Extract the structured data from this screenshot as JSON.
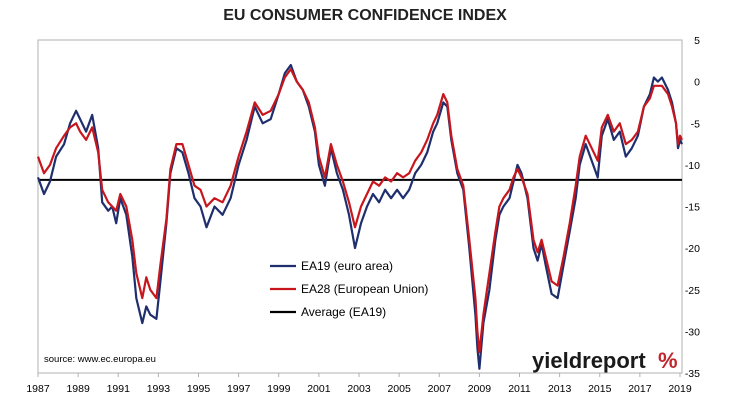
{
  "chart_data": {
    "type": "line",
    "title": "EU CONSUMER CONFIDENCE INDEX",
    "xlabel": "",
    "ylabel": "",
    "xlim": [
      1987,
      2019.1
    ],
    "ylim": [
      -35,
      5
    ],
    "x_ticks": [
      1987,
      1989,
      1991,
      1993,
      1995,
      1997,
      1999,
      2001,
      2003,
      2005,
      2007,
      2009,
      2011,
      2013,
      2015,
      2017,
      2019
    ],
    "y_ticks": [
      5,
      0,
      -5,
      -10,
      -15,
      -20,
      -25,
      -30,
      -35
    ],
    "y_axis_side": "right",
    "grid": false,
    "legend": {
      "placement": "lower-center"
    },
    "source": "source: www.ec.europa.eu",
    "brand": {
      "main": "yieldreport",
      "mark": "%"
    },
    "colors": {
      "ea19": "#1f2f6e",
      "ea28": "#c8161d",
      "average": "#000000",
      "frame": "#b0b0b0"
    },
    "series": [
      {
        "name": "EA19 (euro area)",
        "color": "#1f2f6e",
        "points": [
          [
            1987.0,
            -11.5
          ],
          [
            1987.3,
            -13.5
          ],
          [
            1987.6,
            -12
          ],
          [
            1987.9,
            -9
          ],
          [
            1988.3,
            -7.5
          ],
          [
            1988.6,
            -5
          ],
          [
            1988.9,
            -3.5
          ],
          [
            1989.1,
            -4.5
          ],
          [
            1989.4,
            -6
          ],
          [
            1989.7,
            -4
          ],
          [
            1990.0,
            -8
          ],
          [
            1990.2,
            -14.5
          ],
          [
            1990.5,
            -15.5
          ],
          [
            1990.7,
            -15
          ],
          [
            1990.9,
            -17
          ],
          [
            1991.1,
            -14
          ],
          [
            1991.4,
            -16
          ],
          [
            1991.7,
            -21
          ],
          [
            1991.9,
            -26
          ],
          [
            1992.2,
            -29
          ],
          [
            1992.4,
            -27
          ],
          [
            1992.6,
            -28
          ],
          [
            1992.9,
            -28.5
          ],
          [
            1993.1,
            -24
          ],
          [
            1993.4,
            -17
          ],
          [
            1993.6,
            -11
          ],
          [
            1993.9,
            -8
          ],
          [
            1994.2,
            -8.5
          ],
          [
            1994.5,
            -11
          ],
          [
            1994.8,
            -14
          ],
          [
            1995.1,
            -15
          ],
          [
            1995.4,
            -17.5
          ],
          [
            1995.8,
            -15
          ],
          [
            1996.2,
            -16
          ],
          [
            1996.6,
            -14
          ],
          [
            1997.0,
            -10
          ],
          [
            1997.4,
            -7
          ],
          [
            1997.8,
            -3
          ],
          [
            1998.2,
            -5
          ],
          [
            1998.6,
            -4.5
          ],
          [
            1999.0,
            -1.5
          ],
          [
            1999.3,
            1
          ],
          [
            1999.6,
            2
          ],
          [
            1999.9,
            0
          ],
          [
            2000.2,
            -1
          ],
          [
            2000.5,
            -3
          ],
          [
            2000.8,
            -6
          ],
          [
            2001.0,
            -10
          ],
          [
            2001.3,
            -12.5
          ],
          [
            2001.6,
            -8
          ],
          [
            2001.9,
            -11
          ],
          [
            2002.2,
            -13
          ],
          [
            2002.5,
            -16
          ],
          [
            2002.8,
            -20
          ],
          [
            2003.1,
            -17
          ],
          [
            2003.4,
            -15
          ],
          [
            2003.7,
            -13.5
          ],
          [
            2004.0,
            -14.5
          ],
          [
            2004.3,
            -13
          ],
          [
            2004.6,
            -14
          ],
          [
            2004.9,
            -13
          ],
          [
            2005.2,
            -14
          ],
          [
            2005.5,
            -13
          ],
          [
            2005.8,
            -11
          ],
          [
            2006.1,
            -10
          ],
          [
            2006.4,
            -8.5
          ],
          [
            2006.7,
            -6
          ],
          [
            2006.9,
            -5
          ],
          [
            2007.2,
            -2.5
          ],
          [
            2007.4,
            -3
          ],
          [
            2007.6,
            -7
          ],
          [
            2007.9,
            -11
          ],
          [
            2008.2,
            -13
          ],
          [
            2008.5,
            -20
          ],
          [
            2008.8,
            -28
          ],
          [
            2008.9,
            -32
          ],
          [
            2009.0,
            -34.5
          ],
          [
            2009.2,
            -29
          ],
          [
            2009.5,
            -25
          ],
          [
            2009.8,
            -19
          ],
          [
            2010.0,
            -16
          ],
          [
            2010.2,
            -15
          ],
          [
            2010.5,
            -14
          ],
          [
            2010.7,
            -12
          ],
          [
            2010.9,
            -10
          ],
          [
            2011.1,
            -11
          ],
          [
            2011.4,
            -14
          ],
          [
            2011.7,
            -20
          ],
          [
            2011.9,
            -21.5
          ],
          [
            2012.1,
            -19.5
          ],
          [
            2012.3,
            -22
          ],
          [
            2012.6,
            -25.5
          ],
          [
            2012.9,
            -26
          ],
          [
            2013.2,
            -22
          ],
          [
            2013.5,
            -18
          ],
          [
            2013.8,
            -14
          ],
          [
            2014.0,
            -10
          ],
          [
            2014.3,
            -7.5
          ],
          [
            2014.6,
            -9.5
          ],
          [
            2014.9,
            -11.5
          ],
          [
            2015.1,
            -6.5
          ],
          [
            2015.4,
            -4.5
          ],
          [
            2015.7,
            -7
          ],
          [
            2016.0,
            -6
          ],
          [
            2016.3,
            -9
          ],
          [
            2016.6,
            -8
          ],
          [
            2016.9,
            -6.5
          ],
          [
            2017.2,
            -3
          ],
          [
            2017.5,
            -1.5
          ],
          [
            2017.7,
            0.5
          ],
          [
            2017.9,
            0
          ],
          [
            2018.1,
            0.5
          ],
          [
            2018.4,
            -1
          ],
          [
            2018.6,
            -2.5
          ],
          [
            2018.8,
            -5
          ],
          [
            2018.9,
            -8
          ],
          [
            2019.0,
            -7
          ],
          [
            2019.1,
            -7.5
          ]
        ]
      },
      {
        "name": "EA28 (European Union)",
        "color": "#c8161d",
        "points": [
          [
            1987.0,
            -9
          ],
          [
            1987.3,
            -11
          ],
          [
            1987.6,
            -10
          ],
          [
            1987.9,
            -8
          ],
          [
            1988.3,
            -6.5
          ],
          [
            1988.6,
            -5.5
          ],
          [
            1988.9,
            -5
          ],
          [
            1989.1,
            -6
          ],
          [
            1989.4,
            -7
          ],
          [
            1989.7,
            -5.5
          ],
          [
            1990.0,
            -8.5
          ],
          [
            1990.2,
            -13
          ],
          [
            1990.5,
            -14.5
          ],
          [
            1990.7,
            -15
          ],
          [
            1990.9,
            -15.5
          ],
          [
            1991.1,
            -13.5
          ],
          [
            1991.4,
            -15
          ],
          [
            1991.7,
            -19
          ],
          [
            1991.9,
            -23
          ],
          [
            1992.2,
            -26
          ],
          [
            1992.4,
            -23.5
          ],
          [
            1992.6,
            -25
          ],
          [
            1992.9,
            -26
          ],
          [
            1993.1,
            -22
          ],
          [
            1993.4,
            -16.5
          ],
          [
            1993.6,
            -10.5
          ],
          [
            1993.9,
            -7.5
          ],
          [
            1994.2,
            -7.5
          ],
          [
            1994.5,
            -10
          ],
          [
            1994.8,
            -12.5
          ],
          [
            1995.1,
            -13
          ],
          [
            1995.4,
            -15
          ],
          [
            1995.8,
            -14
          ],
          [
            1996.2,
            -14.5
          ],
          [
            1996.6,
            -12.5
          ],
          [
            1997.0,
            -9
          ],
          [
            1997.4,
            -6
          ],
          [
            1997.8,
            -2.5
          ],
          [
            1998.2,
            -4
          ],
          [
            1998.6,
            -3.5
          ],
          [
            1999.0,
            -1.5
          ],
          [
            1999.3,
            0.5
          ],
          [
            1999.6,
            1.5
          ],
          [
            1999.9,
            0
          ],
          [
            2000.2,
            -1
          ],
          [
            2000.5,
            -2.5
          ],
          [
            2000.8,
            -5.5
          ],
          [
            2001.0,
            -9
          ],
          [
            2001.3,
            -11.5
          ],
          [
            2001.6,
            -7.5
          ],
          [
            2001.9,
            -10
          ],
          [
            2002.2,
            -12
          ],
          [
            2002.5,
            -14.5
          ],
          [
            2002.8,
            -17.5
          ],
          [
            2003.1,
            -15
          ],
          [
            2003.4,
            -13.5
          ],
          [
            2003.7,
            -12
          ],
          [
            2004.0,
            -12.5
          ],
          [
            2004.3,
            -11.5
          ],
          [
            2004.6,
            -12
          ],
          [
            2004.9,
            -11
          ],
          [
            2005.2,
            -11.5
          ],
          [
            2005.5,
            -11
          ],
          [
            2005.8,
            -9.5
          ],
          [
            2006.1,
            -8.5
          ],
          [
            2006.4,
            -7
          ],
          [
            2006.7,
            -5
          ],
          [
            2006.9,
            -4
          ],
          [
            2007.2,
            -1.5
          ],
          [
            2007.4,
            -2.5
          ],
          [
            2007.6,
            -6.5
          ],
          [
            2007.9,
            -10.5
          ],
          [
            2008.2,
            -12.5
          ],
          [
            2008.5,
            -19
          ],
          [
            2008.8,
            -26
          ],
          [
            2008.9,
            -30
          ],
          [
            2009.0,
            -32.5
          ],
          [
            2009.2,
            -28
          ],
          [
            2009.5,
            -23
          ],
          [
            2009.8,
            -18
          ],
          [
            2010.0,
            -15
          ],
          [
            2010.2,
            -14
          ],
          [
            2010.5,
            -13
          ],
          [
            2010.7,
            -11.5
          ],
          [
            2010.9,
            -10.5
          ],
          [
            2011.1,
            -11.5
          ],
          [
            2011.4,
            -13.5
          ],
          [
            2011.7,
            -19
          ],
          [
            2011.9,
            -20.5
          ],
          [
            2012.1,
            -19
          ],
          [
            2012.3,
            -21
          ],
          [
            2012.6,
            -24
          ],
          [
            2012.9,
            -24.5
          ],
          [
            2013.2,
            -21
          ],
          [
            2013.5,
            -17
          ],
          [
            2013.8,
            -12.5
          ],
          [
            2014.0,
            -9
          ],
          [
            2014.3,
            -6.5
          ],
          [
            2014.6,
            -8
          ],
          [
            2014.9,
            -9.5
          ],
          [
            2015.1,
            -5.5
          ],
          [
            2015.4,
            -4
          ],
          [
            2015.7,
            -6
          ],
          [
            2016.0,
            -5
          ],
          [
            2016.3,
            -7.5
          ],
          [
            2016.6,
            -7
          ],
          [
            2016.9,
            -6
          ],
          [
            2017.2,
            -3
          ],
          [
            2017.5,
            -2
          ],
          [
            2017.7,
            -0.5
          ],
          [
            2017.9,
            -0.5
          ],
          [
            2018.1,
            -0.5
          ],
          [
            2018.4,
            -1.5
          ],
          [
            2018.6,
            -3
          ],
          [
            2018.8,
            -5
          ],
          [
            2018.9,
            -7.5
          ],
          [
            2019.0,
            -6.5
          ],
          [
            2019.1,
            -7
          ]
        ]
      },
      {
        "name": "Average (EA19)",
        "color": "#000000",
        "value": -11.8
      }
    ]
  }
}
